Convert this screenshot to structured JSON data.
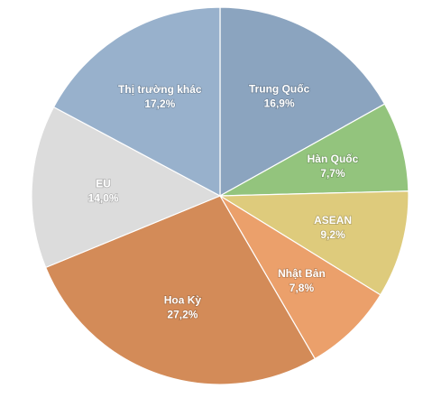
{
  "chart_data": {
    "type": "pie",
    "start_angle_deg": 0,
    "direction": "clockwise",
    "slices": [
      {
        "name": "Trung Quốc",
        "value": 16.9,
        "label": "16,9%",
        "color": "#8BA4BF"
      },
      {
        "name": "Hàn Quốc",
        "value": 7.7,
        "label": "7,7%",
        "color": "#93C47D"
      },
      {
        "name": "ASEAN",
        "value": 9.2,
        "label": "9,2%",
        "color": "#DECB7C"
      },
      {
        "name": "Nhật Bản",
        "value": 7.8,
        "label": "7,8%",
        "color": "#EBA06B"
      },
      {
        "name": "Hoa Kỳ",
        "value": 27.2,
        "label": "27,2%",
        "color": "#D38B58"
      },
      {
        "name": "EU",
        "value": 14.0,
        "label": "14,0%",
        "color": "#DCDCDC"
      },
      {
        "name": "Thị trường khác",
        "value": 17.2,
        "label": "17,2%",
        "color": "#98B1CC"
      }
    ]
  }
}
